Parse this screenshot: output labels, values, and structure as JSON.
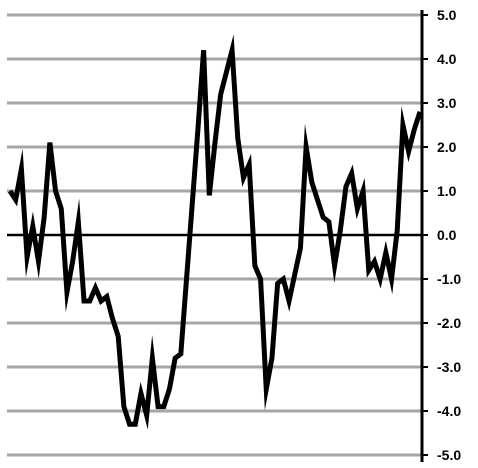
{
  "chart_data": {
    "type": "line",
    "title": "",
    "xlabel": "",
    "ylabel": "",
    "ylim": [
      -5,
      5
    ],
    "yticks": [
      "5.0",
      "4.0",
      "3.0",
      "2.0",
      "1.0",
      "0.0",
      "-1.0",
      "-2.0",
      "-3.0",
      "-4.0",
      "-5.0"
    ],
    "grid": true,
    "legend": "none",
    "colors": {
      "line": "#000000",
      "grid": "#a6a6a6",
      "axis": "#000000"
    },
    "series": [
      {
        "values": [
          1.0,
          0.8,
          1.5,
          -0.5,
          0.2,
          -0.6,
          0.4,
          2.1,
          1.0,
          0.6,
          -1.3,
          -0.6,
          0.3,
          -1.5,
          -1.5,
          -1.2,
          -1.5,
          -1.4,
          -1.9,
          -2.3,
          -3.9,
          -4.3,
          -4.3,
          -3.6,
          -4.1,
          -2.8,
          -3.9,
          -3.9,
          -3.5,
          -2.8,
          -2.7,
          -1.0,
          0.7,
          2.4,
          4.2,
          0.9,
          2.1,
          3.2,
          3.7,
          4.2,
          2.2,
          1.3,
          1.6,
          -0.7,
          -1.0,
          -3.5,
          -2.8,
          -1.1,
          -1.0,
          -1.5,
          -0.9,
          -0.3,
          2.0,
          1.2,
          0.8,
          0.4,
          0.3,
          -0.7,
          0.1,
          1.1,
          1.4,
          0.6,
          1.0,
          -0.8,
          -0.6,
          -1.0,
          -0.4,
          -1.0,
          0.1,
          2.5,
          1.9,
          2.4,
          2.8
        ]
      }
    ]
  }
}
